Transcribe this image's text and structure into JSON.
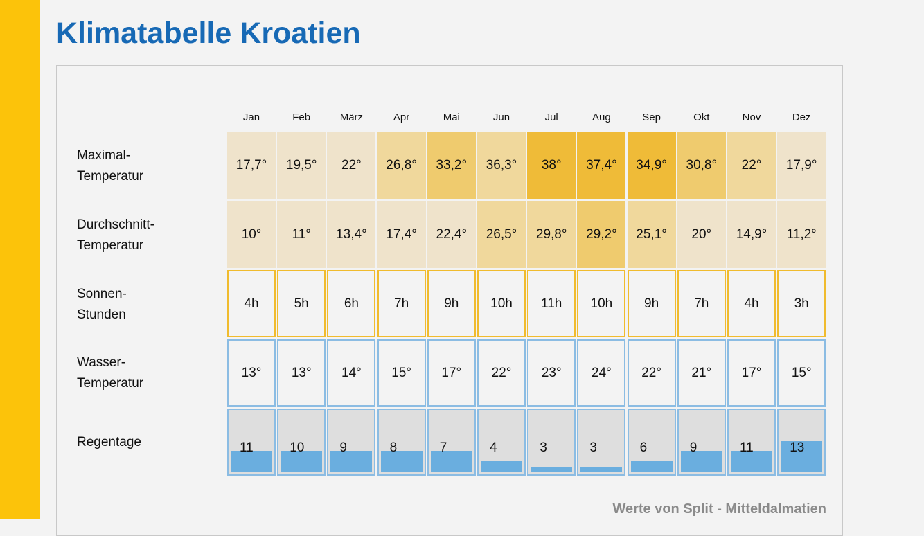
{
  "title": "Klimatabelle Kroatien",
  "footer": "Werte von Split - Mitteldalmatien",
  "months": [
    "Jan",
    "Feb",
    "März",
    "Apr",
    "Mai",
    "Jun",
    "Jul",
    "Aug",
    "Sep",
    "Okt",
    "Nov",
    "Dez"
  ],
  "rows": {
    "max": {
      "label_1": "Maximal-",
      "label_2": "Temperatur",
      "values": [
        "17,7°",
        "19,5°",
        "22°",
        "26,8°",
        "33,2°",
        "36,3°",
        "38°",
        "37,4°",
        "34,9°",
        "30,8°",
        "22°",
        "17,9°"
      ],
      "colors": [
        "#efe3cb",
        "#efe3cb",
        "#efe3cb",
        "#f0d89c",
        "#efcb6e",
        "#f0d89c",
        "#efbb38",
        "#efbb38",
        "#efbb38",
        "#efcb6e",
        "#f0d89c",
        "#efe3cb"
      ]
    },
    "avg": {
      "label_1": "Durchschnitt-",
      "label_2": "Temperatur",
      "values": [
        "10°",
        "11°",
        "13,4°",
        "17,4°",
        "22,4°",
        "26,5°",
        "29,8°",
        "29,2°",
        "25,1°",
        "20°",
        "14,9°",
        "11,2°"
      ],
      "colors": [
        "#efe3cb",
        "#efe3cb",
        "#efe3cb",
        "#efe3cb",
        "#efe3cb",
        "#f0d89c",
        "#f0d89c",
        "#efcb6e",
        "#f0d89c",
        "#efe3cb",
        "#efe3cb",
        "#efe3cb"
      ]
    },
    "sun": {
      "label_1": "Sonnen-",
      "label_2": "Stunden",
      "values": [
        "4h",
        "5h",
        "6h",
        "7h",
        "9h",
        "10h",
        "11h",
        "10h",
        "9h",
        "7h",
        "4h",
        "3h"
      ]
    },
    "water": {
      "label_1": "Wasser-",
      "label_2": "Temperatur",
      "values": [
        "13°",
        "13°",
        "14°",
        "15°",
        "17°",
        "22°",
        "23°",
        "24°",
        "22°",
        "21°",
        "17°",
        "15°"
      ]
    },
    "rain": {
      "label_1": "Regentage",
      "values": [
        "11",
        "10",
        "9",
        "8",
        "7",
        "4",
        "3",
        "3",
        "6",
        "9",
        "11",
        "13"
      ],
      "fill_fraction": [
        0.355,
        0.355,
        0.355,
        0.355,
        0.355,
        0.18,
        0.09,
        0.09,
        0.18,
        0.355,
        0.355,
        0.52
      ]
    }
  },
  "colors": {
    "accent_bar": "#fcc30a",
    "title": "#1769b5",
    "sun_border": "#f0bb2d",
    "water_border": "#8bbce3",
    "rain_fill": "#6aaedf"
  }
}
